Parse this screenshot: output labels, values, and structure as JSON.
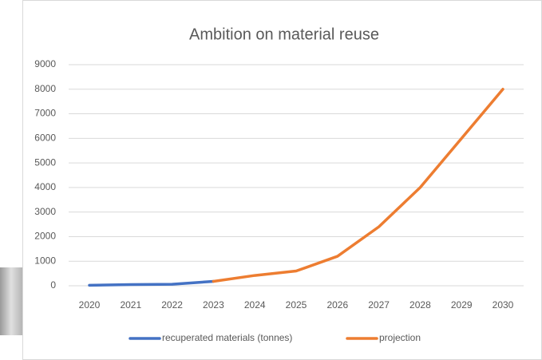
{
  "chart_data": {
    "type": "line",
    "title": "Ambition on material reuse",
    "categories": [
      "2020",
      "2021",
      "2022",
      "2023",
      "2024",
      "2025",
      "2026",
      "2027",
      "2028",
      "2029",
      "2030"
    ],
    "series": [
      {
        "name": "recuperated materials (tonnes)",
        "color": "#4472c4",
        "values": [
          20,
          50,
          60,
          180,
          null,
          null,
          null,
          null,
          null,
          null,
          null
        ]
      },
      {
        "name": "projection",
        "color": "#ed7d31",
        "values": [
          null,
          null,
          null,
          180,
          420,
          600,
          1200,
          2400,
          4000,
          6000,
          8000
        ]
      }
    ],
    "ylim": [
      0,
      9000
    ],
    "yticks": [
      0,
      1000,
      2000,
      3000,
      4000,
      5000,
      6000,
      7000,
      8000,
      9000
    ],
    "grid": true,
    "legend": "bottom"
  }
}
